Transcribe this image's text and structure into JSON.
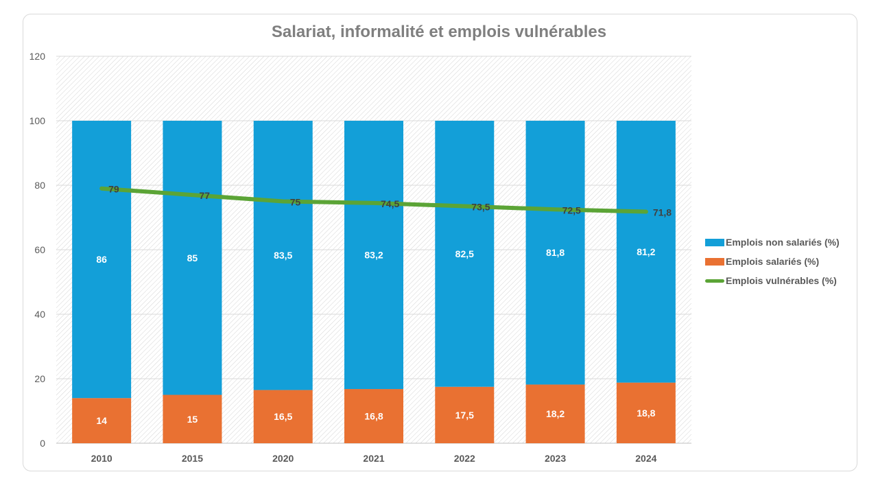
{
  "chart_data": {
    "type": "bar",
    "stacked": true,
    "title": "Salariat, informalité et emplois vulnérables",
    "categories": [
      "2010",
      "2015",
      "2020",
      "2021",
      "2022",
      "2023",
      "2024"
    ],
    "series": [
      {
        "name": "Emplois salariés (%)",
        "kind": "bar",
        "color": "#E97132",
        "values": [
          14,
          15,
          16.5,
          16.8,
          17.5,
          18.2,
          18.8
        ],
        "labels": [
          "14",
          "15",
          "16,5",
          "16,8",
          "17,5",
          "18,2",
          "18,8"
        ]
      },
      {
        "name": "Emplois non salariés (%)",
        "kind": "bar",
        "color": "#139FD8",
        "values": [
          86,
          85,
          83.5,
          83.2,
          82.5,
          81.8,
          81.2
        ],
        "labels": [
          "86",
          "85",
          "83,5",
          "83,2",
          "82,5",
          "81,8",
          "81,2"
        ]
      },
      {
        "name": "Emplois vulnérables (%)",
        "kind": "line",
        "color": "#5BA436",
        "values": [
          79,
          77,
          75,
          74.5,
          73.5,
          72.5,
          71.8
        ],
        "labels": [
          "79",
          "77",
          "75",
          "74,5",
          "73,5",
          "72,5",
          "71,8"
        ]
      }
    ],
    "ylim": [
      0,
      120
    ],
    "yticks": [
      "0",
      "20",
      "40",
      "60",
      "80",
      "100",
      "120"
    ],
    "grid": true,
    "legend": "right",
    "legend_order": [
      "Emplois non salariés (%)",
      "Emplois salariés (%)",
      "Emplois vulnérables (%)"
    ]
  }
}
